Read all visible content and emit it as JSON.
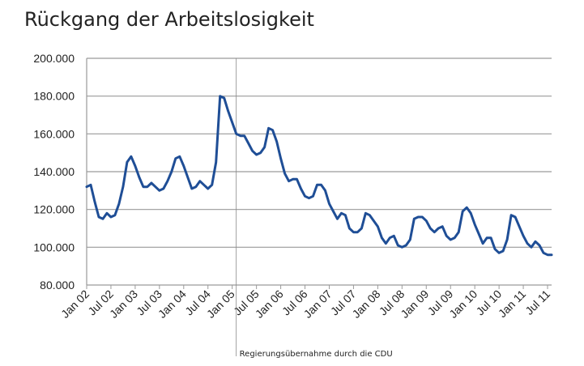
{
  "chart_data": {
    "type": "line",
    "title": "Rückgang der Arbeitslosigkeit",
    "xlabel": "",
    "ylabel": "",
    "ylim": [
      80000,
      200000
    ],
    "yticks": [
      80000,
      100000,
      120000,
      140000,
      160000,
      180000,
      200000
    ],
    "ytick_labels": [
      "80.000",
      "100.000",
      "120.000",
      "140.000",
      "160.000",
      "180.000",
      "200.000"
    ],
    "xticks": [
      0,
      6,
      12,
      18,
      24,
      30,
      36,
      42,
      48,
      54,
      60,
      66,
      72,
      78,
      84,
      90,
      96,
      102,
      108,
      114
    ],
    "xtick_labels": [
      "Jan 02",
      "Jul 02",
      "Jan 03",
      "Jul 03",
      "Jan 04",
      "Jul 04",
      "Jan 05",
      "Jul 05",
      "Jan 06",
      "Jul 06",
      "Jan 07",
      "Jul 07",
      "Jan 08",
      "Jul 08",
      "Jan 09",
      "Jul 09",
      "Jan 10",
      "Jul 10",
      "Jan 11",
      "Jul 11"
    ],
    "grid": "horizontal",
    "line_color": "#1f4e96",
    "annotation": {
      "x": 37,
      "label": "Regierungsübernahme durch die CDU"
    },
    "series": [
      {
        "x": [
          0,
          1,
          2,
          3,
          4,
          5,
          6,
          7,
          8,
          9,
          10,
          11,
          12,
          13,
          14,
          15,
          16,
          17,
          18,
          19,
          20,
          21,
          22,
          23,
          24,
          25,
          26,
          27,
          28,
          29,
          30,
          31,
          32,
          33,
          34,
          35,
          36,
          37,
          38,
          39,
          40,
          41,
          42,
          43,
          44,
          45,
          46,
          47,
          48,
          49,
          50,
          51,
          52,
          53,
          54,
          55,
          56,
          57,
          58,
          59,
          60,
          61,
          62,
          63,
          64,
          65,
          66,
          67,
          68,
          69,
          70,
          71,
          72,
          73,
          74,
          75,
          76,
          77,
          78,
          79,
          80,
          81,
          82,
          83,
          84,
          85,
          86,
          87,
          88,
          89,
          90,
          91,
          92,
          93,
          94,
          95,
          96,
          97,
          98,
          99,
          100,
          101,
          102,
          103,
          104,
          105,
          106,
          107,
          108,
          109,
          110,
          111,
          112,
          113,
          114,
          115
        ],
        "values": [
          132000,
          133000,
          124000,
          116000,
          115000,
          118000,
          116000,
          117000,
          123000,
          132000,
          145000,
          148000,
          143000,
          137000,
          132000,
          132000,
          134000,
          132000,
          130000,
          131000,
          135000,
          140000,
          147000,
          148000,
          143000,
          137000,
          131000,
          132000,
          135000,
          133000,
          131000,
          133000,
          145000,
          180000,
          179000,
          172000,
          166000,
          160000,
          159000,
          159000,
          155000,
          151000,
          149000,
          150000,
          153000,
          163000,
          162000,
          156000,
          147000,
          139000,
          135000,
          136000,
          136000,
          131000,
          127000,
          126000,
          127000,
          133000,
          133000,
          130000,
          123000,
          119000,
          115000,
          118000,
          117000,
          110000,
          108000,
          108000,
          110000,
          118000,
          117000,
          114000,
          111000,
          105000,
          102000,
          105000,
          106000,
          101000,
          100000,
          101000,
          104000,
          115000,
          116000,
          116000,
          114000,
          110000,
          108000,
          110000,
          111000,
          106000,
          104000,
          105000,
          108000,
          119000,
          121000,
          118000,
          112000,
          107000,
          102000,
          105000,
          105000,
          99000,
          97000,
          98000,
          104000,
          117000,
          116000,
          111000,
          106000,
          102000,
          100000,
          103000,
          101000,
          97000,
          96000,
          96000
        ]
      }
    ]
  }
}
